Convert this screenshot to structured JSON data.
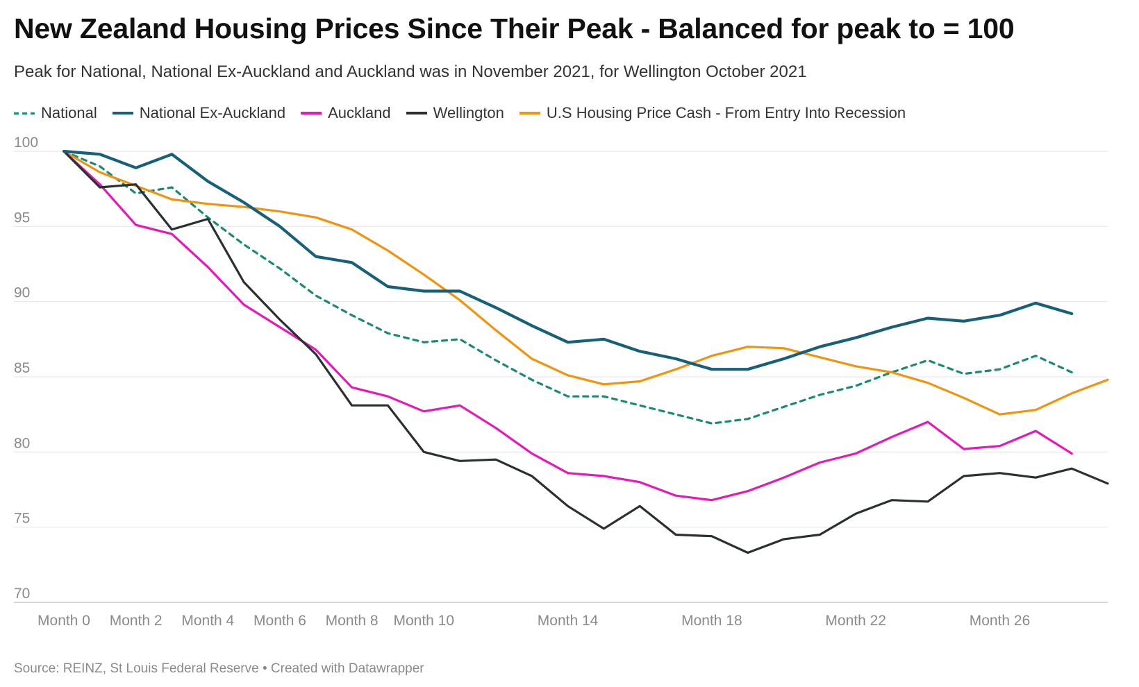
{
  "header": {
    "title": "New Zealand Housing Prices Since Their Peak - Balanced for peak to = 100",
    "subtitle": "Peak for National, National Ex-Auckland and Auckland was in November 2021, for Wellington October 2021"
  },
  "footer": {
    "source": "Source: REINZ, St Louis Federal Reserve • Created with Datawrapper"
  },
  "chart_data": {
    "type": "line",
    "title": "New Zealand Housing Prices Since Their Peak - Balanced for peak to = 100",
    "subtitle": "Peak for National, National Ex-Auckland and Auckland was in November 2021, for Wellington October 2021",
    "xlabel": "",
    "ylabel": "",
    "ylim": [
      70,
      100
    ],
    "yticks": [
      100,
      95,
      90,
      85,
      80,
      75,
      70
    ],
    "x": [
      0,
      1,
      2,
      3,
      4,
      5,
      6,
      7,
      8,
      9,
      10,
      11,
      12,
      13,
      14,
      15,
      16,
      17,
      18,
      19,
      20,
      21,
      22,
      23,
      24,
      25,
      26,
      27,
      28,
      29
    ],
    "xticks": [
      {
        "x": 0,
        "label": "Month 0"
      },
      {
        "x": 2,
        "label": "Month 2"
      },
      {
        "x": 4,
        "label": "Month 4"
      },
      {
        "x": 6,
        "label": "Month 6"
      },
      {
        "x": 8,
        "label": "Month 8"
      },
      {
        "x": 10,
        "label": "Month 10"
      },
      {
        "x": 14,
        "label": "Month 14"
      },
      {
        "x": 18,
        "label": "Month 18"
      },
      {
        "x": 22,
        "label": "Month 22"
      },
      {
        "x": 26,
        "label": "Month 26"
      }
    ],
    "grid": true,
    "legend": "top-left",
    "series": [
      {
        "name": "National",
        "color": "#1a8a72",
        "dashed": true,
        "values": [
          100,
          99.0,
          97.2,
          97.6,
          95.6,
          93.8,
          92.2,
          90.4,
          89.1,
          87.9,
          87.3,
          87.5,
          86.1,
          84.8,
          83.7,
          83.7,
          83.1,
          82.5,
          81.9,
          82.2,
          83.0,
          83.8,
          84.4,
          85.3,
          86.1,
          85.2,
          85.5,
          86.4,
          85.3,
          null
        ]
      },
      {
        "name": "National Ex-Auckland",
        "color": "#17607a",
        "dashed": false,
        "values": [
          100,
          99.8,
          98.9,
          99.8,
          98.0,
          96.6,
          95.0,
          93.0,
          92.6,
          91.0,
          90.7,
          90.7,
          89.6,
          88.4,
          87.3,
          87.5,
          86.7,
          86.2,
          85.5,
          85.5,
          86.2,
          87.0,
          87.6,
          88.3,
          88.9,
          88.7,
          89.1,
          89.9,
          89.2,
          null
        ]
      },
      {
        "name": "Auckland",
        "color": "#e619b8",
        "dashed": false,
        "values": [
          100,
          97.8,
          95.1,
          94.5,
          92.3,
          89.8,
          88.3,
          86.8,
          84.3,
          83.7,
          82.7,
          83.1,
          81.6,
          79.9,
          78.6,
          78.4,
          78.0,
          77.1,
          76.8,
          77.4,
          78.3,
          79.3,
          79.9,
          81.0,
          82.0,
          80.2,
          80.4,
          81.4,
          79.9,
          null
        ]
      },
      {
        "name": "Wellington",
        "color": "#2a2f30",
        "dashed": false,
        "values": [
          100,
          97.6,
          97.8,
          94.8,
          95.5,
          91.3,
          88.8,
          86.5,
          83.1,
          83.1,
          80.0,
          79.4,
          79.5,
          78.4,
          76.4,
          74.9,
          76.4,
          74.5,
          74.4,
          73.3,
          74.2,
          74.5,
          75.9,
          76.8,
          76.7,
          78.4,
          78.6,
          78.3,
          78.9,
          77.9
        ]
      },
      {
        "name": "U.S Housing Price Cash - From Entry Into Recession",
        "color": "#f0940e",
        "dashed": false,
        "values": [
          100,
          98.6,
          97.7,
          96.8,
          96.5,
          96.3,
          96.0,
          95.6,
          94.8,
          93.4,
          91.8,
          90.1,
          88.1,
          86.2,
          85.1,
          84.5,
          84.7,
          85.5,
          86.4,
          87.0,
          86.9,
          86.3,
          85.7,
          85.3,
          84.6,
          83.6,
          82.5,
          82.8,
          83.9,
          84.8
        ]
      }
    ]
  }
}
